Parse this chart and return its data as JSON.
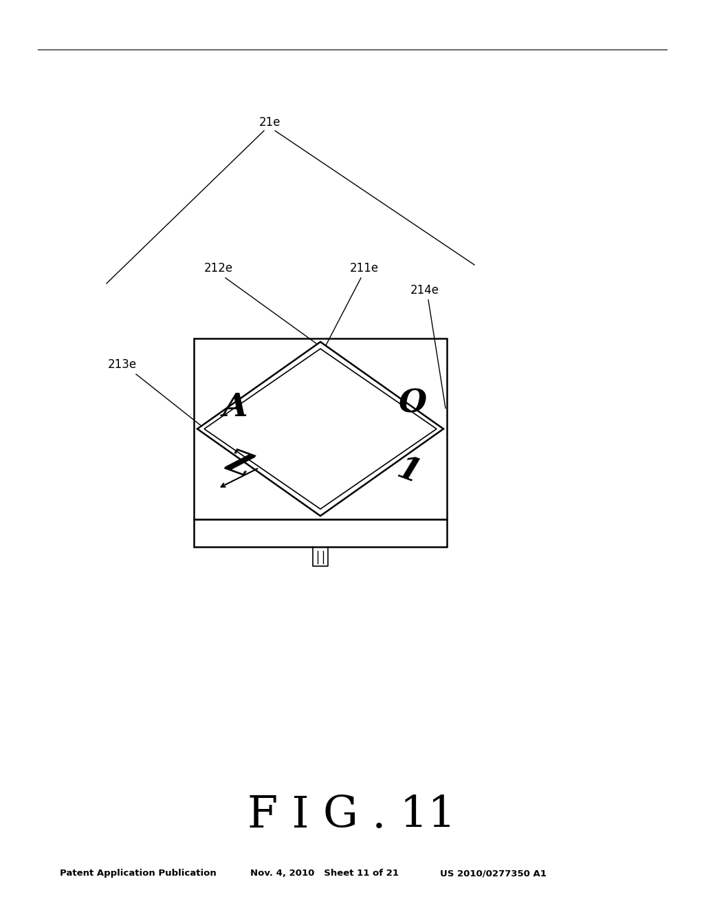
{
  "title": "F I G . 11",
  "header_left": "Patent Application Publication",
  "header_mid": "Nov. 4, 2010   Sheet 11 of 21",
  "header_right": "US 2010/0277350 A1",
  "bg_color": "#ffffff",
  "label_21e": "21e",
  "label_211e": "211e",
  "label_212e": "212e",
  "label_213e": "213e",
  "label_214e": "214e"
}
